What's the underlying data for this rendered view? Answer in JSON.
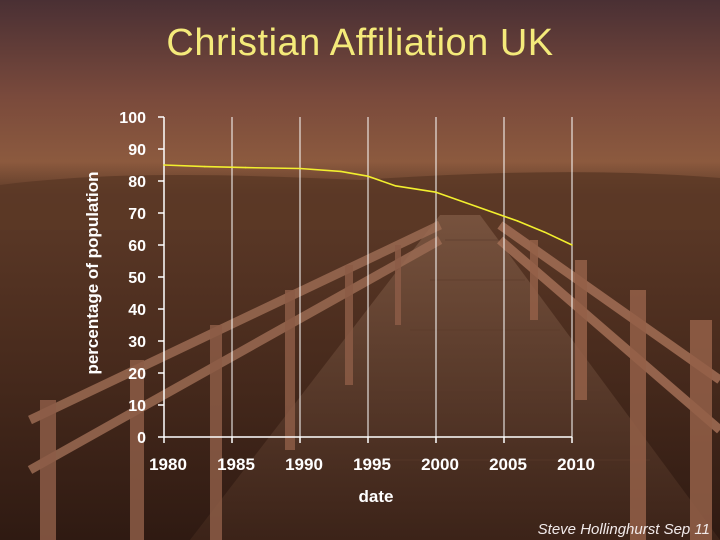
{
  "colors": {
    "title": "#f4ea7a",
    "series": "#f2ef2e",
    "axis": "#ffffff",
    "grid": "#ffffff"
  },
  "credit": "Steve Hollinghurst Sep 11",
  "chart_data": {
    "type": "line",
    "title": "Christian Affiliation UK",
    "xlabel": "date",
    "ylabel": "percentage of population",
    "xlim": [
      1980,
      2010
    ],
    "ylim": [
      0,
      100
    ],
    "xticks": [
      1980,
      1985,
      1990,
      1995,
      2000,
      2005,
      2010
    ],
    "yticks": [
      0,
      10,
      20,
      30,
      40,
      50,
      60,
      70,
      80,
      90,
      100
    ],
    "grid": true,
    "series": [
      {
        "x": [
          1980,
          1983,
          1986,
          1990,
          1993,
          1995,
          1997,
          2000,
          2003,
          2006,
          2008,
          2010
        ],
        "values": [
          85,
          84.5,
          84.2,
          83.9,
          83,
          81.5,
          78.5,
          76.5,
          72,
          67.5,
          64,
          60
        ]
      }
    ]
  }
}
